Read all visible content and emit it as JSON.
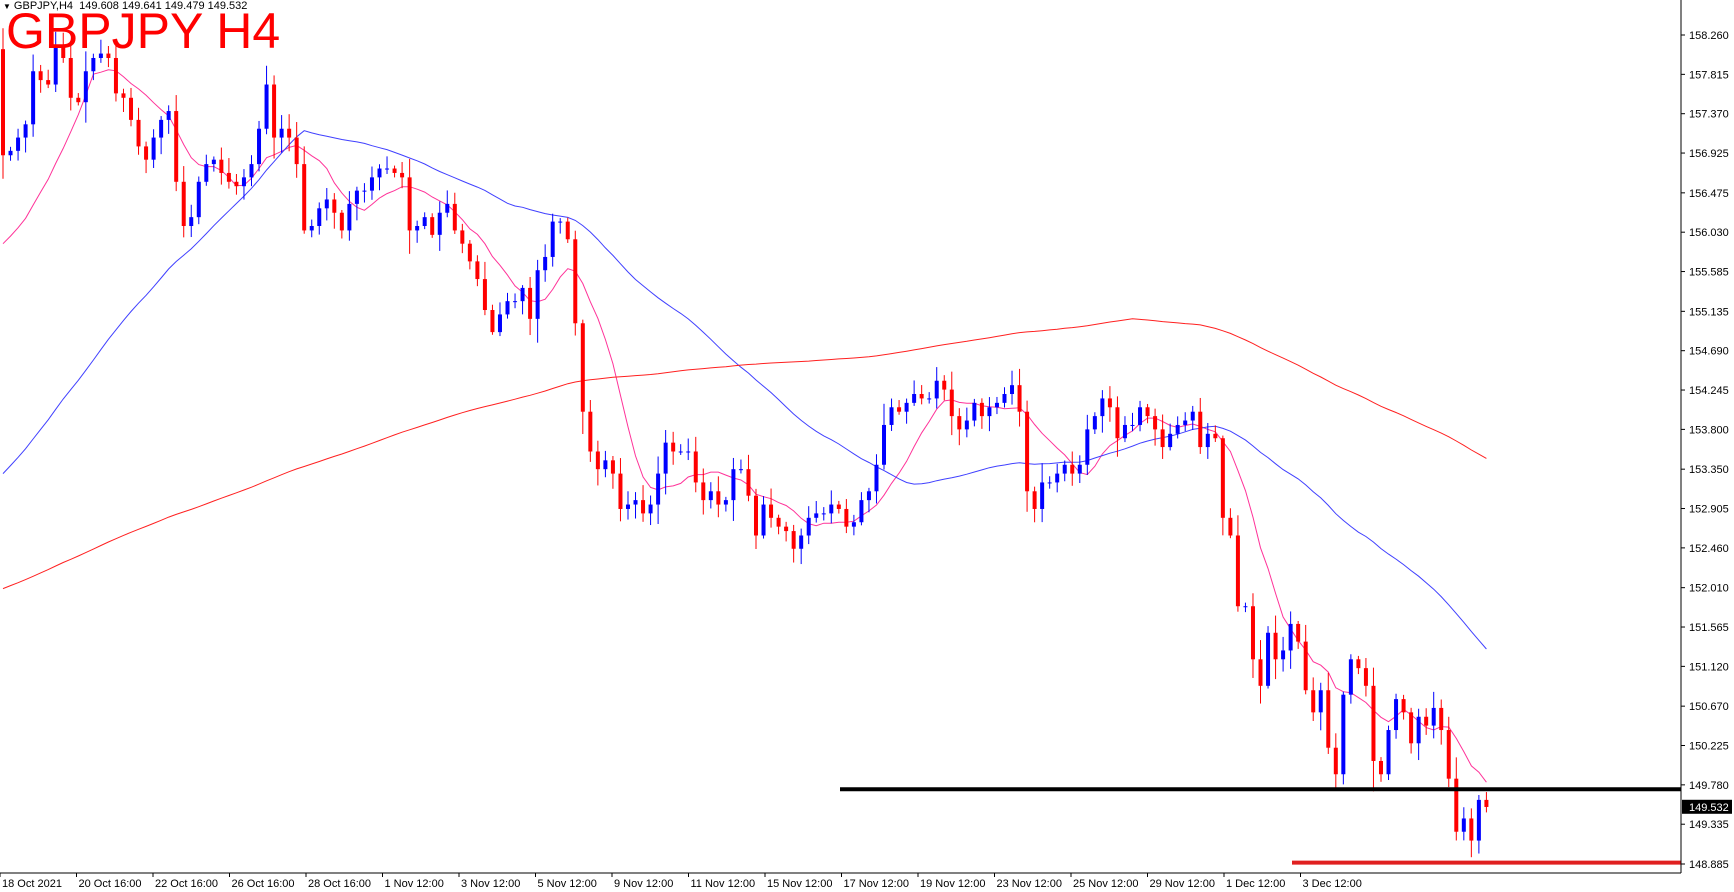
{
  "header": {
    "symbol_tf": "GBPJPY,H4",
    "ohlc": "149.608 149.641 149.479 149.532"
  },
  "title": "GBPJPY H4",
  "chart_data": {
    "type": "candlestick",
    "symbol": "GBPJPY",
    "timeframe": "H4",
    "ylim": [
      148.71,
      158.48
    ],
    "y_ticks": [
      "158.260",
      "157.815",
      "157.370",
      "156.925",
      "156.475",
      "156.030",
      "155.585",
      "155.135",
      "154.690",
      "154.245",
      "153.800",
      "153.350",
      "152.905",
      "152.460",
      "152.010",
      "151.565",
      "151.120",
      "150.670",
      "150.225",
      "149.780",
      "149.335",
      "148.885"
    ],
    "x_ticks": [
      "18 Oct 2021",
      "20 Oct 16:00",
      "22 Oct 16:00",
      "26 Oct 16:00",
      "28 Oct 16:00",
      "1 Nov 12:00",
      "3 Nov 12:00",
      "5 Nov 12:00",
      "9 Nov 12:00",
      "11 Nov 12:00",
      "15 Nov 12:00",
      "17 Nov 12:00",
      "19 Nov 12:00",
      "23 Nov 12:00",
      "25 Nov 12:00",
      "29 Nov 12:00",
      "1 Dec 12:00",
      "3 Dec 12:00"
    ],
    "current_price": "149.532",
    "colors": {
      "bull": "#0000ff",
      "bear": "#ff0000",
      "ma_fast": "#ff3399",
      "ma_mid": "#4040ff",
      "ma_slow": "#ff2020",
      "support": "#000000",
      "low_line": "#e02020",
      "price_label_bg": "#000000"
    },
    "levels": [
      {
        "name": "support",
        "price": 149.73
      },
      {
        "name": "low",
        "price": 148.9
      }
    ],
    "anchor_close": 158.1,
    "closes": [
      156.9,
      156.95,
      157.1,
      157.25,
      157.85,
      157.75,
      157.7,
      158.15,
      158.0,
      157.55,
      157.5,
      157.85,
      158.0,
      158.05,
      158.0,
      157.6,
      157.55,
      157.3,
      157.0,
      156.85,
      157.1,
      157.3,
      157.4,
      156.6,
      156.1,
      156.2,
      156.6,
      156.8,
      156.85,
      156.7,
      156.6,
      156.55,
      156.65,
      156.8,
      157.2,
      157.7,
      157.1,
      157.2,
      157.1,
      156.8,
      156.05,
      156.1,
      156.3,
      156.4,
      156.25,
      156.05,
      156.35,
      156.5,
      156.5,
      156.65,
      156.75,
      156.75,
      156.7,
      156.65,
      156.05,
      156.1,
      156.2,
      156.0,
      156.25,
      156.35,
      156.05,
      155.9,
      155.7,
      155.5,
      155.15,
      154.9,
      155.1,
      155.25,
      155.25,
      155.4,
      155.05,
      155.6,
      155.75,
      156.15,
      156.15,
      155.95,
      155.0,
      154.0,
      153.55,
      153.35,
      153.45,
      153.3,
      152.9,
      152.95,
      153.0,
      152.85,
      152.95,
      153.3,
      153.65,
      153.55,
      153.55,
      153.55,
      153.2,
      153.0,
      153.1,
      152.95,
      153.0,
      153.35,
      153.35,
      153.05,
      152.6,
      152.95,
      152.8,
      152.7,
      152.65,
      152.45,
      152.6,
      152.8,
      152.85,
      152.85,
      152.95,
      152.9,
      152.7,
      152.75,
      153.0,
      153.1,
      153.4,
      153.85,
      154.05,
      154.0,
      154.1,
      154.2,
      154.15,
      154.15,
      154.35,
      154.25,
      153.95,
      153.8,
      153.9,
      154.1,
      153.95,
      154.05,
      154.1,
      154.2,
      154.3,
      154.0,
      153.1,
      152.9,
      153.2,
      153.2,
      153.3,
      153.4,
      153.3,
      153.4,
      153.8,
      153.95,
      154.15,
      154.05,
      153.7,
      153.85,
      153.85,
      154.05,
      153.95,
      153.8,
      153.6,
      153.75,
      153.85,
      153.9,
      154.0,
      153.6,
      153.75,
      153.7,
      152.8,
      152.6,
      151.8,
      151.8,
      151.2,
      150.9,
      151.5,
      151.2,
      151.3,
      151.6,
      151.4,
      150.85,
      150.6,
      150.85,
      150.2,
      149.9,
      150.8,
      151.2,
      151.1,
      150.9,
      150.05,
      149.9,
      150.4,
      150.75,
      150.6,
      150.25,
      150.55,
      150.45,
      150.65,
      150.4,
      149.85,
      149.25,
      149.4,
      149.15,
      149.61,
      149.53
    ]
  }
}
